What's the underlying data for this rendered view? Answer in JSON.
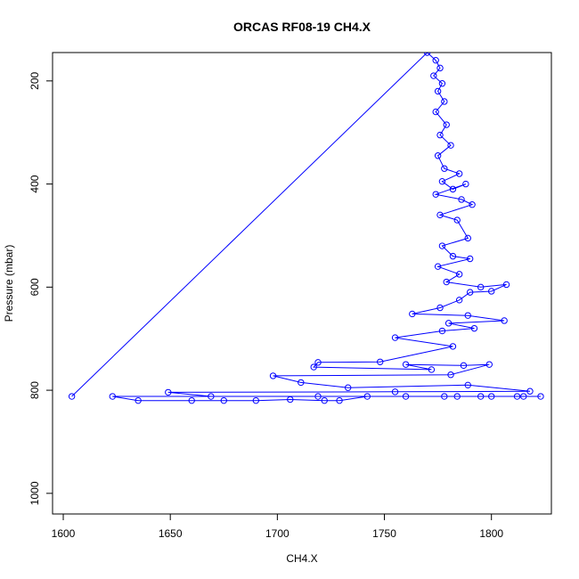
{
  "chart_data": {
    "type": "line",
    "title": "ORCAS RF08-19 CH4.X",
    "xlabel": "CH4.X",
    "ylabel": "Pressure (mbar)",
    "xlim": [
      1595,
      1828
    ],
    "ylim": [
      1040,
      145
    ],
    "y_reversed": true,
    "xticks": [
      1600,
      1650,
      1700,
      1750,
      1800
    ],
    "yticks": [
      200,
      400,
      600,
      800,
      1000
    ],
    "grid": false,
    "legend": "none",
    "marker": "open-circle",
    "color": "#0000ff",
    "series": [
      {
        "values": [
          [
            1604,
            812
          ],
          [
            1770,
            145
          ],
          [
            1774,
            160
          ],
          [
            1776,
            175
          ],
          [
            1773,
            190
          ],
          [
            1777,
            205
          ],
          [
            1775,
            220
          ],
          [
            1778,
            240
          ],
          [
            1774,
            260
          ],
          [
            1779,
            285
          ],
          [
            1776,
            305
          ],
          [
            1781,
            325
          ],
          [
            1775,
            345
          ],
          [
            1778,
            370
          ],
          [
            1785,
            380
          ],
          [
            1777,
            395
          ],
          [
            1782,
            410
          ],
          [
            1788,
            400
          ],
          [
            1774,
            420
          ],
          [
            1786,
            430
          ],
          [
            1791,
            440
          ],
          [
            1776,
            460
          ],
          [
            1784,
            470
          ],
          [
            1789,
            505
          ],
          [
            1777,
            520
          ],
          [
            1782,
            540
          ],
          [
            1790,
            545
          ],
          [
            1775,
            560
          ],
          [
            1785,
            575
          ],
          [
            1779,
            590
          ],
          [
            1795,
            600
          ],
          [
            1807,
            595
          ],
          [
            1800,
            608
          ],
          [
            1790,
            610
          ],
          [
            1785,
            625
          ],
          [
            1776,
            640
          ],
          [
            1763,
            652
          ],
          [
            1789,
            655
          ],
          [
            1806,
            665
          ],
          [
            1780,
            670
          ],
          [
            1792,
            680
          ],
          [
            1777,
            685
          ],
          [
            1755,
            698
          ],
          [
            1782,
            715
          ],
          [
            1748,
            745
          ],
          [
            1719,
            746
          ],
          [
            1717,
            755
          ],
          [
            1772,
            760
          ],
          [
            1760,
            750
          ],
          [
            1787,
            752
          ],
          [
            1799,
            750
          ],
          [
            1781,
            770
          ],
          [
            1698,
            772
          ],
          [
            1711,
            785
          ],
          [
            1733,
            795
          ],
          [
            1789,
            790
          ],
          [
            1818,
            802
          ],
          [
            1755,
            803
          ],
          [
            1649,
            804
          ],
          [
            1669,
            812
          ],
          [
            1719,
            812
          ],
          [
            1778,
            812
          ],
          [
            1795,
            812
          ],
          [
            1812,
            812
          ],
          [
            1823,
            812
          ],
          [
            1623,
            812
          ],
          [
            1635,
            820
          ],
          [
            1660,
            820
          ],
          [
            1675,
            820
          ],
          [
            1690,
            820
          ],
          [
            1706,
            818
          ],
          [
            1722,
            820
          ],
          [
            1729,
            820
          ],
          [
            1742,
            812
          ],
          [
            1760,
            812
          ],
          [
            1784,
            812
          ],
          [
            1800,
            812
          ],
          [
            1815,
            812
          ]
        ]
      }
    ]
  }
}
